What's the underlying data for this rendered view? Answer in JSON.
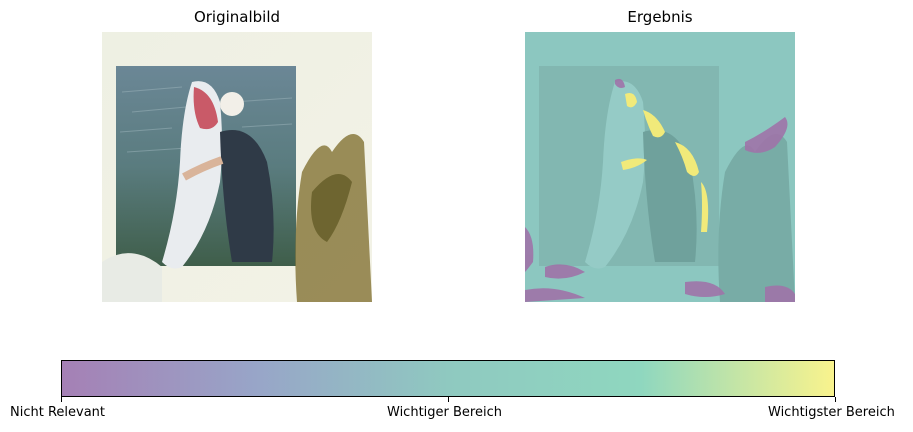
{
  "figure": {
    "left_panel": {
      "title": "Originalbild"
    },
    "right_panel": {
      "title": "Ergebnis"
    },
    "colorbar": {
      "colors": [
        "#a580b5",
        "#98a5c8",
        "#8fc9c0",
        "#8fd7bf",
        "#f9f38d"
      ],
      "ticks": [
        {
          "label": "Nicht Relevant"
        },
        {
          "label": "Wichtiger Bereich"
        },
        {
          "label": "Wichtigster Bereich"
        }
      ]
    }
  }
}
